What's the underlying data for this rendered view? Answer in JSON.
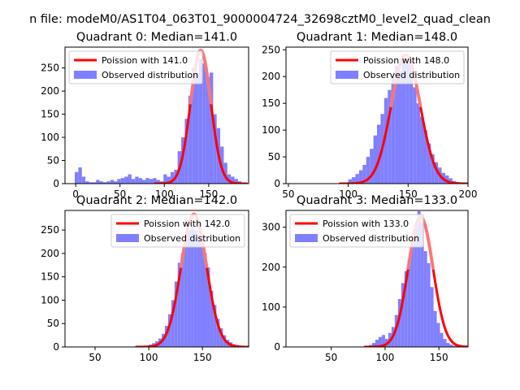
{
  "figure": {
    "suptitle": "n file: modeM0/AS1T04_063T01_9000004724_32698cztM0_level2_quad_clean"
  },
  "colors": {
    "hist": "#8080ff",
    "fit": "#ff0000",
    "fit_peak": "#ff8080",
    "axes": "#000000",
    "legend_border": "#cccccc"
  },
  "chart_data": [
    {
      "type": "bar",
      "title": "Quadrant 0: Median=141.0",
      "legend_position": "upper-left",
      "legend": [
        "Poission with 141.0",
        "Observed distribution"
      ],
      "median": 141.0,
      "xlim": [
        -12,
        195
      ],
      "ylim": [
        0,
        295
      ],
      "xticks": [
        0,
        50,
        100,
        150
      ],
      "yticks": [
        0,
        50,
        100,
        150,
        200,
        250
      ],
      "bins": [
        -1,
        3,
        7,
        11,
        15,
        19,
        23,
        27,
        31,
        35,
        39,
        43,
        47,
        51,
        55,
        59,
        63,
        67,
        71,
        75,
        79,
        83,
        87,
        91,
        95,
        99,
        103,
        107,
        111,
        115,
        119,
        123,
        127,
        131,
        135,
        139,
        143,
        147,
        151,
        155,
        159,
        163,
        167,
        171,
        175,
        179,
        183
      ],
      "counts": [
        25,
        35,
        15,
        5,
        3,
        3,
        8,
        5,
        3,
        5,
        8,
        5,
        10,
        12,
        15,
        20,
        10,
        15,
        12,
        8,
        12,
        10,
        12,
        8,
        5,
        20,
        15,
        25,
        30,
        70,
        100,
        140,
        190,
        250,
        240,
        270,
        260,
        230,
        240,
        150,
        120,
        80,
        45,
        20,
        15,
        10,
        5
      ],
      "fit": {
        "mu": 141.0,
        "sigma": 11.5,
        "amplitude": 288
      }
    },
    {
      "type": "bar",
      "title": "Quadrant 1: Median=148.0",
      "legend_position": "upper-right",
      "legend": [
        "Poission with 148.0",
        "Observed distribution"
      ],
      "median": 148.0,
      "xlim": [
        48,
        200
      ],
      "ylim": [
        0,
        255
      ],
      "xticks": [
        50,
        100,
        150,
        200
      ],
      "yticks": [
        0,
        50,
        100,
        150,
        200,
        250
      ],
      "bins": [
        100,
        103,
        106,
        109,
        112,
        115,
        118,
        121,
        124,
        127,
        130,
        133,
        136,
        139,
        142,
        145,
        148,
        151,
        154,
        157,
        160,
        163,
        166,
        169,
        172,
        175,
        178,
        181,
        184,
        187,
        190
      ],
      "counts": [
        8,
        12,
        18,
        25,
        35,
        50,
        65,
        90,
        110,
        130,
        160,
        175,
        200,
        220,
        210,
        235,
        225,
        230,
        180,
        150,
        125,
        100,
        75,
        55,
        40,
        30,
        20,
        15,
        10,
        5,
        3
      ],
      "fit": {
        "mu": 148.0,
        "sigma": 12.2,
        "amplitude": 240
      }
    },
    {
      "type": "bar",
      "title": "Quadrant 2: Median=142.0",
      "legend_position": "upper-right",
      "legend": [
        "Poission with 142.0",
        "Observed distribution"
      ],
      "median": 142.0,
      "xlim": [
        22,
        193
      ],
      "ylim": [
        0,
        292
      ],
      "xticks": [
        50,
        100,
        150
      ],
      "yticks": [
        0,
        50,
        100,
        150,
        200,
        250
      ],
      "bins": [
        100,
        103,
        106,
        109,
        112,
        115,
        118,
        121,
        124,
        127,
        130,
        133,
        136,
        139,
        142,
        145,
        148,
        151,
        154,
        157,
        160,
        163,
        166,
        169,
        172,
        175,
        178,
        181,
        184
      ],
      "counts": [
        5,
        8,
        12,
        18,
        28,
        45,
        70,
        100,
        140,
        180,
        200,
        230,
        250,
        255,
        250,
        240,
        230,
        200,
        170,
        120,
        90,
        60,
        40,
        25,
        15,
        10,
        6,
        4,
        2
      ],
      "fit": {
        "mu": 142.0,
        "sigma": 11.9,
        "amplitude": 284
      }
    },
    {
      "type": "bar",
      "title": "Quadrant 3: Median=133.0",
      "legend_position": "upper-left",
      "legend": [
        "Poission with 133.0",
        "Observed distribution"
      ],
      "median": 133.0,
      "xlim": [
        8,
        177
      ],
      "ylim": [
        0,
        342
      ],
      "xticks": [
        50,
        100,
        150
      ],
      "yticks": [
        0,
        100,
        200,
        300
      ],
      "bins": [
        85,
        88,
        91,
        94,
        97,
        100,
        103,
        106,
        109,
        112,
        115,
        118,
        121,
        124,
        127,
        130,
        133,
        136,
        139,
        142,
        145,
        148,
        151,
        154,
        157,
        160,
        163,
        166
      ],
      "counts": [
        5,
        10,
        18,
        25,
        30,
        20,
        35,
        50,
        80,
        120,
        160,
        190,
        220,
        280,
        300,
        340,
        310,
        240,
        210,
        150,
        90,
        60,
        35,
        20,
        10,
        6,
        3,
        2
      ],
      "fit": {
        "mu": 133.0,
        "sigma": 11.5,
        "amplitude": 326
      }
    }
  ]
}
